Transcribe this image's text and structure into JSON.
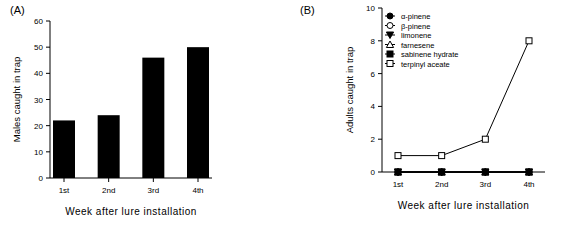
{
  "chart_data": [
    {
      "type": "bar",
      "title": "(A)",
      "xlabel": "Week after lure installation",
      "ylabel": "Males caught in trap",
      "categories": [
        "1st",
        "2nd",
        "3rd",
        "4th"
      ],
      "values": [
        22,
        24,
        46,
        50
      ],
      "color": "#000000",
      "ylim": [
        0,
        60
      ],
      "yticks": [
        0,
        10,
        20,
        30,
        40,
        50,
        60
      ],
      "grid": false
    },
    {
      "type": "line",
      "title": "(B)",
      "xlabel": "Week after lure installation",
      "ylabel": "Adults caught in trap",
      "categories": [
        "1st",
        "2nd",
        "3rd",
        "4th"
      ],
      "series": [
        {
          "name": "α-pinene",
          "color": "#000000",
          "marker": "circle",
          "values": [
            0,
            0,
            0,
            0
          ]
        },
        {
          "name": "β-pinene",
          "color": "#000000",
          "marker": "circle-open",
          "values": [
            0,
            0,
            0,
            0
          ]
        },
        {
          "name": "limonene",
          "color": "#000000",
          "marker": "triangle-down",
          "values": [
            0,
            0,
            0,
            0
          ]
        },
        {
          "name": "farnesene",
          "color": "#000000",
          "marker": "triangle-open",
          "values": [
            0,
            0,
            0,
            0
          ]
        },
        {
          "name": "sabinene hydrate",
          "color": "#000000",
          "marker": "square",
          "values": [
            0,
            0,
            0,
            0
          ]
        },
        {
          "name": "terpinyl aceate",
          "color": "#000000",
          "marker": "square-open",
          "values": [
            1,
            1,
            2,
            8
          ]
        }
      ],
      "ylim": [
        0,
        10
      ],
      "yticks": [
        0,
        2,
        4,
        6,
        8,
        10
      ],
      "grid": false,
      "legend": "upper-left"
    }
  ]
}
